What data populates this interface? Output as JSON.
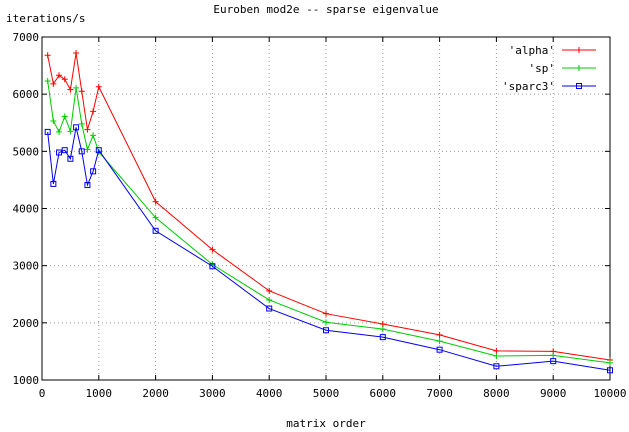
{
  "chart_data": {
    "type": "line",
    "title": "Euroben mod2e -- sparse eigenvalue",
    "xlabel": "matrix order",
    "ylabel": "iterations/s",
    "xlim": [
      0,
      10000
    ],
    "ylim": [
      1000,
      7000
    ],
    "xticks": [
      0,
      1000,
      2000,
      3000,
      4000,
      5000,
      6000,
      7000,
      8000,
      9000,
      10000
    ],
    "yticks": [
      1000,
      2000,
      3000,
      4000,
      5000,
      6000,
      7000
    ],
    "grid": true,
    "legend_position": "top-right",
    "series": [
      {
        "name": "'alpha'",
        "color": "#ff0000",
        "marker": "plus",
        "x": [
          100,
          200,
          300,
          400,
          500,
          600,
          700,
          800,
          900,
          1000,
          2000,
          3000,
          4000,
          5000,
          6000,
          7000,
          8000,
          9000,
          10000
        ],
        "y": [
          6680,
          6180,
          6330,
          6260,
          6080,
          6720,
          6050,
          5380,
          5700,
          6130,
          4120,
          3280,
          2560,
          2160,
          1980,
          1790,
          1510,
          1500,
          1350
        ]
      },
      {
        "name": "'sp'",
        "color": "#00cc00",
        "marker": "plus",
        "x": [
          100,
          200,
          300,
          400,
          500,
          600,
          700,
          800,
          900,
          1000,
          2000,
          3000,
          4000,
          5000,
          6000,
          7000,
          8000,
          9000,
          10000
        ],
        "y": [
          6230,
          5530,
          5340,
          5610,
          5350,
          6110,
          5480,
          5030,
          5280,
          4990,
          3840,
          3020,
          2400,
          2010,
          1890,
          1680,
          1420,
          1430,
          1300
        ]
      },
      {
        "name": "'sparc3'",
        "color": "#0000ee",
        "marker": "square",
        "x": [
          100,
          200,
          300,
          400,
          500,
          600,
          700,
          800,
          900,
          1000,
          2000,
          3000,
          4000,
          5000,
          6000,
          7000,
          8000,
          9000,
          10000
        ],
        "y": [
          5340,
          4430,
          4980,
          5020,
          4870,
          5420,
          5000,
          4410,
          4650,
          5020,
          3610,
          2990,
          2250,
          1870,
          1750,
          1530,
          1240,
          1330,
          1170
        ]
      }
    ]
  }
}
